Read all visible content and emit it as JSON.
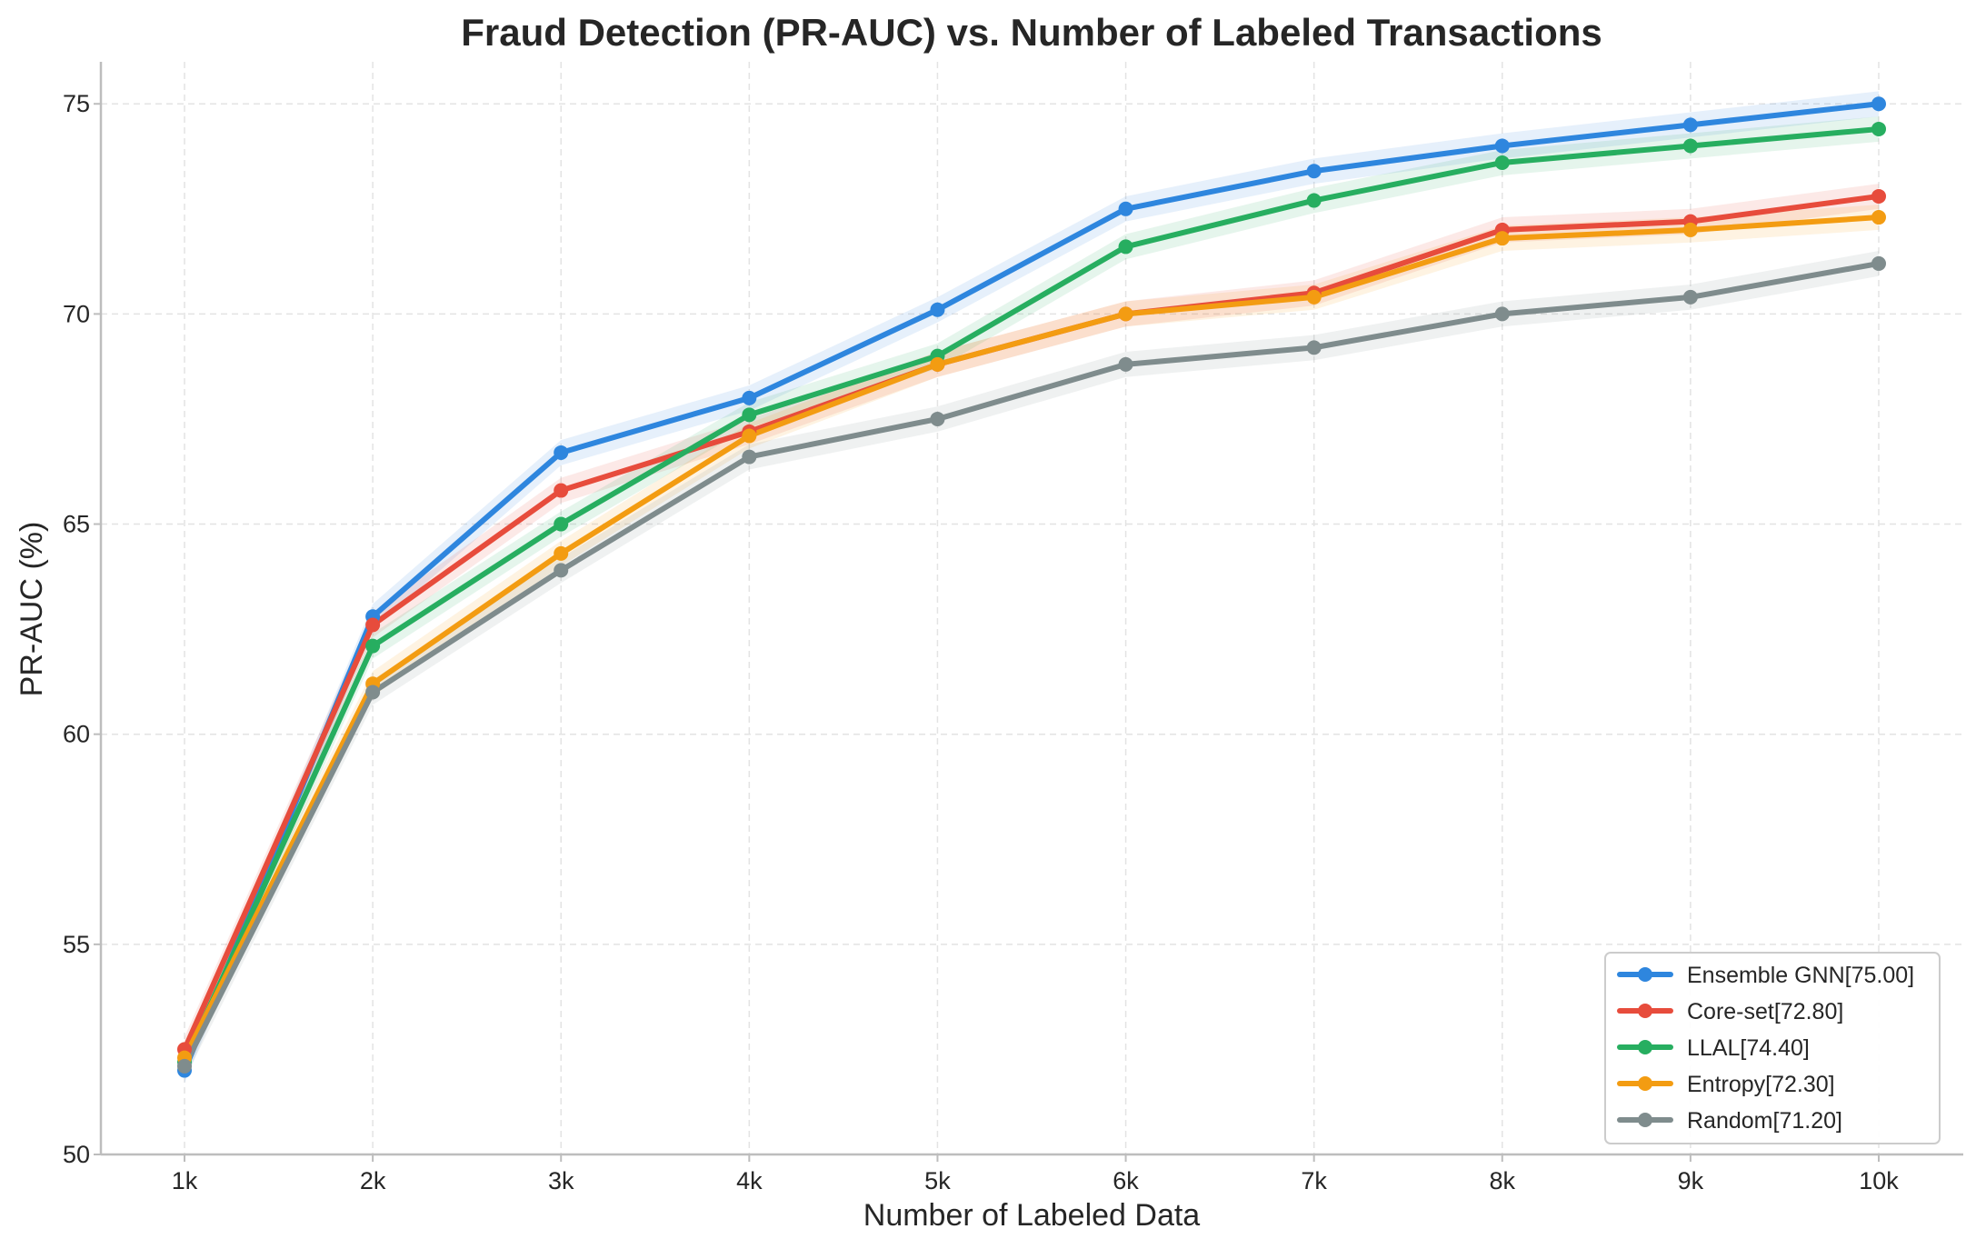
{
  "chart_data": {
    "type": "line",
    "title": "Fraud Detection (PR-AUC) vs. Number of Labeled Transactions",
    "xlabel": "Number of Labeled Data",
    "ylabel": "PR-AUC (%)",
    "categories": [
      "1k",
      "2k",
      "3k",
      "4k",
      "5k",
      "6k",
      "7k",
      "8k",
      "9k",
      "10k"
    ],
    "ylim": [
      50,
      76
    ],
    "yticks": [
      50,
      55,
      60,
      65,
      70,
      75
    ],
    "grid": true,
    "legend_position": "bottom-right",
    "series": [
      {
        "name": "Ensemble GNN[75.00]",
        "color": "#2e86de",
        "band": 0.3,
        "values": [
          52.0,
          62.8,
          66.7,
          68.0,
          70.1,
          72.5,
          73.4,
          74.0,
          74.5,
          75.0
        ]
      },
      {
        "name": "Core-set[72.80]",
        "color": "#e74c3c",
        "band": 0.3,
        "values": [
          52.5,
          62.6,
          65.8,
          67.2,
          68.8,
          70.0,
          70.5,
          72.0,
          72.2,
          72.8
        ]
      },
      {
        "name": "LLAL[74.40]",
        "color": "#27ae60",
        "band": 0.3,
        "values": [
          52.2,
          62.1,
          65.0,
          67.6,
          69.0,
          71.6,
          72.7,
          73.6,
          74.0,
          74.4
        ]
      },
      {
        "name": "Entropy[72.30]",
        "color": "#f39c12",
        "band": 0.3,
        "values": [
          52.3,
          61.2,
          64.3,
          67.1,
          68.8,
          70.0,
          70.4,
          71.8,
          72.0,
          72.3
        ]
      },
      {
        "name": "Random[71.20]",
        "color": "#7f8c8d",
        "band": 0.3,
        "values": [
          52.1,
          61.0,
          63.9,
          66.6,
          67.5,
          68.8,
          69.2,
          70.0,
          70.4,
          71.2
        ]
      }
    ]
  }
}
